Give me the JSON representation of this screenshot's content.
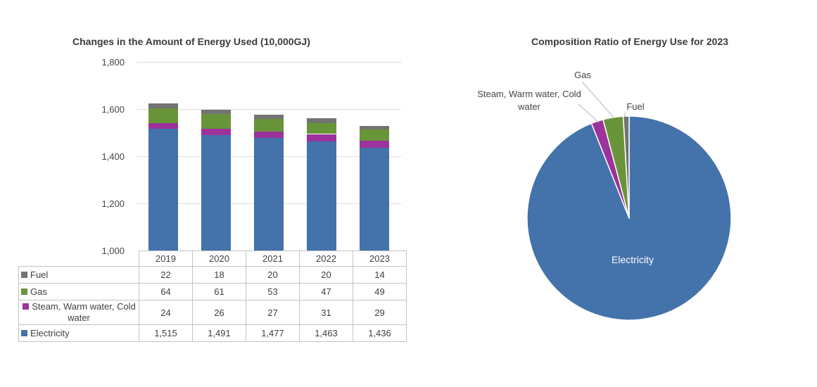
{
  "left_chart": {
    "title": "Changes in the Amount of Energy Used (10,000GJ)",
    "y_axis_labels": [
      "1,800",
      "1,600",
      "1,400",
      "1,200",
      "1,000"
    ],
    "table": {
      "col_headers": [
        "2019",
        "2020",
        "2021",
        "2022",
        "2023"
      ],
      "rows": [
        {
          "label": "Fuel",
          "marker_color": "#737373",
          "values": [
            "22",
            "18",
            "20",
            "20",
            "14"
          ]
        },
        {
          "label": "Gas",
          "marker_color": "#689539",
          "values": [
            "64",
            "61",
            "53",
            "47",
            "49"
          ]
        },
        {
          "label": "Steam, Warm water, Cold water",
          "marker_color": "#9c329c",
          "values": [
            "24",
            "26",
            "27",
            "31",
            "29"
          ],
          "centered": true
        },
        {
          "label": "Electricity",
          "marker_color": "#4472aa",
          "values": [
            "1,515",
            "1,491",
            "1,477",
            "1,463",
            "1,436"
          ]
        }
      ]
    }
  },
  "right_chart": {
    "title": "Composition Ratio of Energy Use for 2023",
    "inside_label": "Electricity",
    "gas_label": "Gas",
    "steam_label": "Steam, Warm water, Cold water",
    "fuel_label": "Fuel"
  },
  "chart_data": [
    {
      "type": "bar",
      "subtype": "stacked-column",
      "title": "Changes in the Amount of Energy Used (10,000GJ)",
      "categories": [
        "2019",
        "2020",
        "2021",
        "2022",
        "2023"
      ],
      "series": [
        {
          "name": "Fuel",
          "color": "#737373",
          "values": [
            22,
            18,
            20,
            20,
            14
          ]
        },
        {
          "name": "Gas",
          "color": "#689539",
          "values": [
            64,
            61,
            53,
            47,
            49
          ]
        },
        {
          "name": "Steam, Warm water, Cold water",
          "color": "#9c329c",
          "values": [
            24,
            26,
            27,
            31,
            29
          ]
        },
        {
          "name": "Electricity",
          "color": "#4472aa",
          "values": [
            1515,
            1491,
            1477,
            1463,
            1436
          ]
        }
      ],
      "stack_order_note": "series listed top-of-stack first; Electricity is bottom segment",
      "ylabel": "",
      "xlabel": "",
      "ylim": [
        1000,
        1800
      ],
      "ytick_step": 200,
      "grid": true,
      "legend_position": "table-left"
    },
    {
      "type": "pie",
      "title": "Composition Ratio of Energy Use for 2023",
      "start_angle_deg": 0,
      "direction": "clockwise",
      "slices": [
        {
          "label": "Electricity",
          "value": 1436,
          "color": "#4472aa"
        },
        {
          "label": "Steam, Warm water, Cold water",
          "value": 29,
          "color": "#9c329c"
        },
        {
          "label": "Gas",
          "value": 49,
          "color": "#689539"
        },
        {
          "label": "Fuel",
          "value": 14,
          "color": "#737373"
        }
      ]
    }
  ],
  "colors": {
    "fuel": "#737373",
    "gas": "#689539",
    "steam": "#9c329c",
    "electricity": "#4472aa",
    "gridline": "#dcdcdc",
    "table_border": "#c3c3c3",
    "leader_line": "#b7b7b7",
    "text": "#404040"
  }
}
